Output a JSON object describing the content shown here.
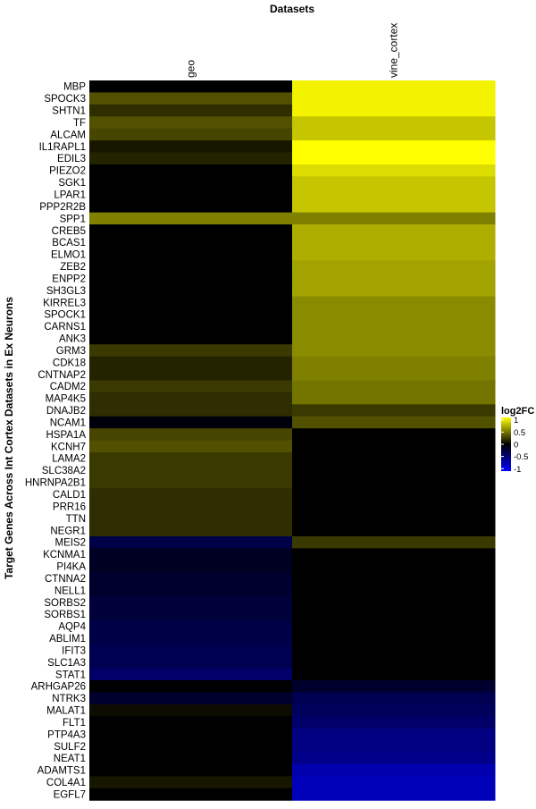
{
  "chart_data": {
    "type": "heatmap",
    "title": "Datasets",
    "ylabel": "Target Genes Across Int Cortex Datasets in Ex Neurons",
    "columns": [
      "geo",
      "vine_cortex"
    ],
    "rows": [
      "MBP",
      "SPOCK3",
      "SHTN1",
      "TF",
      "ALCAM",
      "IL1RAPL1",
      "EDIL3",
      "PIEZO2",
      "SGK1",
      "LPAR1",
      "PPP2R2B",
      "SPP1",
      "CREB5",
      "BCAS1",
      "ELMO1",
      "ZEB2",
      "ENPP2",
      "SH3GL3",
      "KIRREL3",
      "SPOCK1",
      "CARNS1",
      "ANK3",
      "GRM3",
      "CDK18",
      "CNTNAP2",
      "CADM2",
      "MAP4K5",
      "DNAJB2",
      "NCAM1",
      "HSPA1A",
      "KCNH7",
      "LAMA2",
      "SLC38A2",
      "HNRNPA2B1",
      "CALD1",
      "PRR16",
      "TTN",
      "NEGR1",
      "MEIS2",
      "KCNMA1",
      "PI4KA",
      "CTNNA2",
      "NELL1",
      "SORBS2",
      "SORBS1",
      "AQP4",
      "ABLIM1",
      "IFIT3",
      "SLC1A3",
      "STAT1",
      "ARHGAP26",
      "NTRK3",
      "MALAT1",
      "FLT1",
      "PTP4A3",
      "SULF2",
      "NEAT1",
      "ADAMTS1",
      "COL4A1",
      "EGFL7"
    ],
    "values": [
      [
        0.0,
        1.05
      ],
      [
        0.35,
        1.05
      ],
      [
        0.2,
        1.05
      ],
      [
        0.35,
        0.85
      ],
      [
        0.3,
        0.85
      ],
      [
        0.1,
        1.1
      ],
      [
        0.15,
        1.1
      ],
      [
        0.0,
        0.95
      ],
      [
        0.0,
        0.85
      ],
      [
        0.0,
        0.85
      ],
      [
        0.0,
        0.85
      ],
      [
        0.55,
        0.55
      ],
      [
        0.0,
        0.75
      ],
      [
        0.0,
        0.75
      ],
      [
        0.0,
        0.75
      ],
      [
        0.0,
        0.7
      ],
      [
        0.0,
        0.7
      ],
      [
        0.0,
        0.7
      ],
      [
        0.0,
        0.6
      ],
      [
        0.0,
        0.6
      ],
      [
        0.0,
        0.6
      ],
      [
        0.0,
        0.6
      ],
      [
        0.25,
        0.6
      ],
      [
        0.15,
        0.55
      ],
      [
        0.15,
        0.55
      ],
      [
        0.25,
        0.5
      ],
      [
        0.2,
        0.5
      ],
      [
        0.2,
        0.25
      ],
      [
        -0.05,
        0.35
      ],
      [
        0.3,
        0.0
      ],
      [
        0.35,
        0.0
      ],
      [
        0.25,
        0.0
      ],
      [
        0.25,
        0.0
      ],
      [
        0.25,
        0.0
      ],
      [
        0.2,
        0.0
      ],
      [
        0.2,
        0.0
      ],
      [
        0.2,
        0.0
      ],
      [
        0.2,
        0.0
      ],
      [
        -0.3,
        0.25
      ],
      [
        -0.15,
        0.0
      ],
      [
        -0.15,
        0.0
      ],
      [
        -0.2,
        0.0
      ],
      [
        -0.2,
        0.0
      ],
      [
        -0.25,
        0.0
      ],
      [
        -0.25,
        0.0
      ],
      [
        -0.3,
        0.0
      ],
      [
        -0.3,
        0.0
      ],
      [
        -0.35,
        0.0
      ],
      [
        -0.35,
        0.0
      ],
      [
        -0.45,
        0.0
      ],
      [
        0.0,
        -0.2
      ],
      [
        -0.2,
        -0.35
      ],
      [
        0.05,
        -0.4
      ],
      [
        0.0,
        -0.45
      ],
      [
        0.0,
        -0.55
      ],
      [
        0.0,
        -0.55
      ],
      [
        0.0,
        -0.6
      ],
      [
        0.0,
        -0.75
      ],
      [
        0.1,
        -0.8
      ],
      [
        0.0,
        -0.8
      ]
    ],
    "legend": {
      "title": "log2FC",
      "ticks": [
        "1",
        "0.5",
        "0",
        "-0.5",
        "-1"
      ],
      "tick_values": [
        1,
        0.5,
        0,
        -0.5,
        -1
      ],
      "range": [
        -1.1,
        1.1
      ],
      "placement": "right"
    },
    "colors": {
      "high": "#ffff00",
      "mid": "#000000",
      "low": "#0000ff"
    }
  }
}
